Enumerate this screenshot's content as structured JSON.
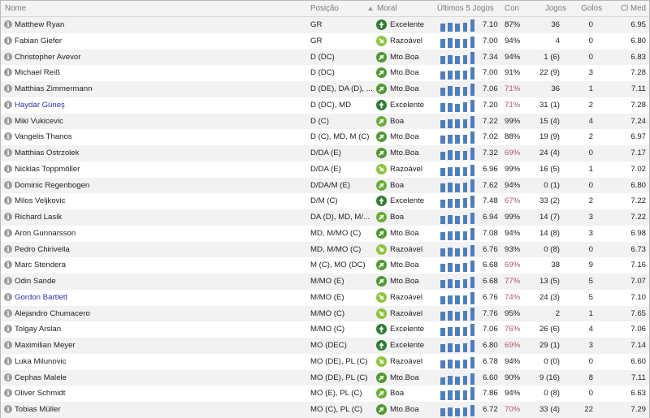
{
  "columns": {
    "name": "Nome",
    "pos": "Posição",
    "moral": "Moral",
    "last5": "Últimos 5 Jogos",
    "con": "Con",
    "jogos": "Jogos",
    "golos": "Golos",
    "clmed": "Cl Med"
  },
  "colors": {
    "excelente": "#2e7d32",
    "mtoboa": "#4f9a2f",
    "boa": "#6aae36",
    "razoavel": "#8cc63e",
    "bar": "#4d7fbf",
    "con_warn": "#a95b5b",
    "link": "#2a2fb3"
  },
  "players": [
    {
      "name": "Matthew Ryan",
      "pos": "GR",
      "moral": "Excelente",
      "moral_icon": "excellent-up-arrow-icon",
      "avg": "7.10",
      "con": "87%",
      "jogos": "36",
      "golos": "0",
      "clmed": "6.95",
      "last5": [
        0.65,
        0.7,
        0.6,
        0.68,
        0.95
      ],
      "link": false,
      "warn": false
    },
    {
      "name": "Fabian Giefer",
      "pos": "GR",
      "moral": "Razoável",
      "moral_icon": "okay-down-arrow-icon",
      "avg": "7.00",
      "con": "94%",
      "jogos": "4",
      "golos": "0",
      "clmed": "6.80",
      "last5": [
        0.7,
        0.72,
        0.68,
        0.7,
        0.9
      ],
      "link": false,
      "warn": false
    },
    {
      "name": "Christopher Avevor",
      "pos": "D (DC)",
      "moral": "Mto.Boa",
      "moral_icon": "very-good-arrow-icon",
      "avg": "7.34",
      "con": "94%",
      "jogos": "1 (6)",
      "golos": "0",
      "clmed": "6.83",
      "last5": [
        0.6,
        0.7,
        0.65,
        0.7,
        0.95
      ],
      "link": false,
      "warn": false
    },
    {
      "name": "Michael Reiß",
      "pos": "D (DC)",
      "moral": "Mto.Boa",
      "moral_icon": "very-good-arrow-icon",
      "avg": "7.00",
      "con": "91%",
      "jogos": "22 (9)",
      "golos": "3",
      "clmed": "7.28",
      "last5": [
        0.62,
        0.68,
        0.7,
        0.66,
        0.92
      ],
      "link": false,
      "warn": false
    },
    {
      "name": "Matthias Zimmermann",
      "pos": "D (DE), DA (D), ...",
      "moral": "Mto.Boa",
      "moral_icon": "very-good-arrow-icon",
      "avg": "7.06",
      "con": "71%",
      "jogos": "36",
      "golos": "1",
      "clmed": "7.11",
      "last5": [
        0.6,
        0.72,
        0.66,
        0.7,
        0.94
      ],
      "link": false,
      "warn": true
    },
    {
      "name": "Haydar Güneş",
      "pos": "D (DC), MD",
      "moral": "Excelente",
      "moral_icon": "excellent-up-arrow-icon",
      "avg": "7.20",
      "con": "71%",
      "jogos": "31 (1)",
      "golos": "2",
      "clmed": "7.28",
      "last5": [
        0.66,
        0.7,
        0.64,
        0.72,
        0.95
      ],
      "link": true,
      "warn": true
    },
    {
      "name": "Miki Vukicevic",
      "pos": "D (C)",
      "moral": "Boa",
      "moral_icon": "good-arrow-icon",
      "avg": "7.22",
      "con": "99%",
      "jogos": "15 (4)",
      "golos": "4",
      "clmed": "7.24",
      "last5": [
        0.62,
        0.7,
        0.68,
        0.7,
        0.93
      ],
      "link": false,
      "warn": false
    },
    {
      "name": "Vangelis Thanos",
      "pos": "D (C), MD, M (C)",
      "moral": "Mto.Boa",
      "moral_icon": "very-good-arrow-icon",
      "avg": "7.02",
      "con": "88%",
      "jogos": "19 (9)",
      "golos": "2",
      "clmed": "6.97",
      "last5": [
        0.64,
        0.7,
        0.66,
        0.68,
        0.92
      ],
      "link": false,
      "warn": false
    },
    {
      "name": "Matthias Ostrzolek",
      "pos": "D/DA (E)",
      "moral": "Mto.Boa",
      "moral_icon": "very-good-arrow-icon",
      "avg": "7.32",
      "con": "69%",
      "jogos": "24 (4)",
      "golos": "0",
      "clmed": "7.17",
      "last5": [
        0.62,
        0.72,
        0.68,
        0.7,
        0.95
      ],
      "link": false,
      "warn": true
    },
    {
      "name": "Nicklas Toppmöller",
      "pos": "D/DA (E)",
      "moral": "Razoável",
      "moral_icon": "okay-down-arrow-icon",
      "avg": "6.96",
      "con": "99%",
      "jogos": "16 (5)",
      "golos": "1",
      "clmed": "7.02",
      "last5": [
        0.6,
        0.68,
        0.66,
        0.7,
        0.9
      ],
      "link": false,
      "warn": false
    },
    {
      "name": "Dominic Regenbogen",
      "pos": "D/DA/M (E)",
      "moral": "Boa",
      "moral_icon": "good-arrow-icon",
      "avg": "7.62",
      "con": "94%",
      "jogos": "0 (1)",
      "golos": "0",
      "clmed": "6.80",
      "last5": [
        0.66,
        0.72,
        0.7,
        0.74,
        0.97
      ],
      "link": false,
      "warn": false
    },
    {
      "name": "Milos Veljkovic",
      "pos": "D/M (C)",
      "moral": "Excelente",
      "moral_icon": "excellent-up-arrow-icon",
      "avg": "7.48",
      "con": "67%",
      "jogos": "33 (2)",
      "golos": "2",
      "clmed": "7.22",
      "last5": [
        0.64,
        0.7,
        0.68,
        0.72,
        0.96
      ],
      "link": false,
      "warn": true
    },
    {
      "name": "Richard Lasik",
      "pos": "DA (D), MD, M/...",
      "moral": "Boa",
      "moral_icon": "good-arrow-icon",
      "avg": "6.94",
      "con": "99%",
      "jogos": "14 (7)",
      "golos": "3",
      "clmed": "7.22",
      "last5": [
        0.6,
        0.68,
        0.64,
        0.7,
        0.9
      ],
      "link": false,
      "warn": false
    },
    {
      "name": "Aron Gunnarsson",
      "pos": "MD, M/MO (C)",
      "moral": "Mto.Boa",
      "moral_icon": "very-good-arrow-icon",
      "avg": "7.08",
      "con": "94%",
      "jogos": "14 (8)",
      "golos": "3",
      "clmed": "6.98",
      "last5": [
        0.62,
        0.7,
        0.66,
        0.7,
        0.93
      ],
      "link": false,
      "warn": false
    },
    {
      "name": "Pedro Chirivella",
      "pos": "MD, M/MO (C)",
      "moral": "Razoável",
      "moral_icon": "okay-down-arrow-icon",
      "avg": "6.76",
      "con": "93%",
      "jogos": "0 (8)",
      "golos": "0",
      "clmed": "6.73",
      "last5": [
        0.6,
        0.66,
        0.64,
        0.68,
        0.9
      ],
      "link": false,
      "warn": false
    },
    {
      "name": "Marc Stendera",
      "pos": "M (C), MO (DC)",
      "moral": "Mto.Boa",
      "moral_icon": "very-good-arrow-icon",
      "avg": "6.68",
      "con": "69%",
      "jogos": "38",
      "golos": "9",
      "clmed": "7.16",
      "last5": [
        0.6,
        0.68,
        0.64,
        0.68,
        0.9
      ],
      "link": false,
      "warn": true
    },
    {
      "name": "Odin Sande",
      "pos": "M/MO (E)",
      "moral": "Mto.Boa",
      "moral_icon": "very-good-arrow-icon",
      "avg": "6.68",
      "con": "77%",
      "jogos": "13 (5)",
      "golos": "5",
      "clmed": "7.07",
      "last5": [
        0.6,
        0.66,
        0.64,
        0.7,
        0.9
      ],
      "link": false,
      "warn": true
    },
    {
      "name": "Gordon Bartlett",
      "pos": "M/MO (E)",
      "moral": "Razoável",
      "moral_icon": "okay-down-arrow-icon",
      "avg": "6.76",
      "con": "74%",
      "jogos": "24 (3)",
      "golos": "5",
      "clmed": "7.10",
      "last5": [
        0.62,
        0.68,
        0.66,
        0.7,
        0.91
      ],
      "link": true,
      "warn": true
    },
    {
      "name": "Alejandro Chumacero",
      "pos": "M/MO (C)",
      "moral": "Razoável",
      "moral_icon": "okay-down-arrow-icon",
      "avg": "7.76",
      "con": "95%",
      "jogos": "2",
      "golos": "1",
      "clmed": "7.65",
      "last5": [
        0.66,
        0.74,
        0.7,
        0.76,
        0.98
      ],
      "link": false,
      "warn": false
    },
    {
      "name": "Tolgay Arslan",
      "pos": "M/MO (C)",
      "moral": "Excelente",
      "moral_icon": "excellent-up-arrow-icon",
      "avg": "7.06",
      "con": "76%",
      "jogos": "26 (6)",
      "golos": "4",
      "clmed": "7.06",
      "last5": [
        0.62,
        0.7,
        0.66,
        0.7,
        0.93
      ],
      "link": false,
      "warn": true
    },
    {
      "name": "Maximilian Meyer",
      "pos": "MO (DEC)",
      "moral": "Excelente",
      "moral_icon": "excellent-up-arrow-icon",
      "avg": "6.80",
      "con": "69%",
      "jogos": "29 (1)",
      "golos": "3",
      "clmed": "7.14",
      "last5": [
        0.6,
        0.68,
        0.64,
        0.7,
        0.91
      ],
      "link": false,
      "warn": true
    },
    {
      "name": "Luka Milunovic",
      "pos": "MO (DE), PL (C)",
      "moral": "Razoável",
      "moral_icon": "okay-down-arrow-icon",
      "avg": "6.78",
      "con": "94%",
      "jogos": "0 (0)",
      "golos": "0",
      "clmed": "6.60",
      "last5": [
        0.6,
        0.66,
        0.64,
        0.68,
        0.9
      ],
      "link": false,
      "warn": false
    },
    {
      "name": "Cephas Malele",
      "pos": "MO (DE), PL (C)",
      "moral": "Mto.Boa",
      "moral_icon": "very-good-arrow-icon",
      "avg": "6.60",
      "con": "90%",
      "jogos": "9 (16)",
      "golos": "8",
      "clmed": "7.11",
      "last5": [
        0.58,
        0.66,
        0.62,
        0.68,
        0.89
      ],
      "link": false,
      "warn": false
    },
    {
      "name": "Oliver Schmidt",
      "pos": "MO (E), PL (C)",
      "moral": "Boa",
      "moral_icon": "good-arrow-icon",
      "avg": "7.86",
      "con": "94%",
      "jogos": "0 (8)",
      "golos": "0",
      "clmed": "6.63",
      "last5": [
        0.68,
        0.74,
        0.72,
        0.76,
        0.98
      ],
      "link": false,
      "warn": false
    },
    {
      "name": "Tobias Müller",
      "pos": "MO (C), PL (C)",
      "moral": "Mto.Boa",
      "moral_icon": "very-good-arrow-icon",
      "avg": "6.72",
      "con": "70%",
      "jogos": "33 (4)",
      "golos": "22",
      "clmed": "7.29",
      "last5": [
        0.6,
        0.66,
        0.64,
        0.68,
        0.9
      ],
      "link": false,
      "warn": true
    }
  ]
}
